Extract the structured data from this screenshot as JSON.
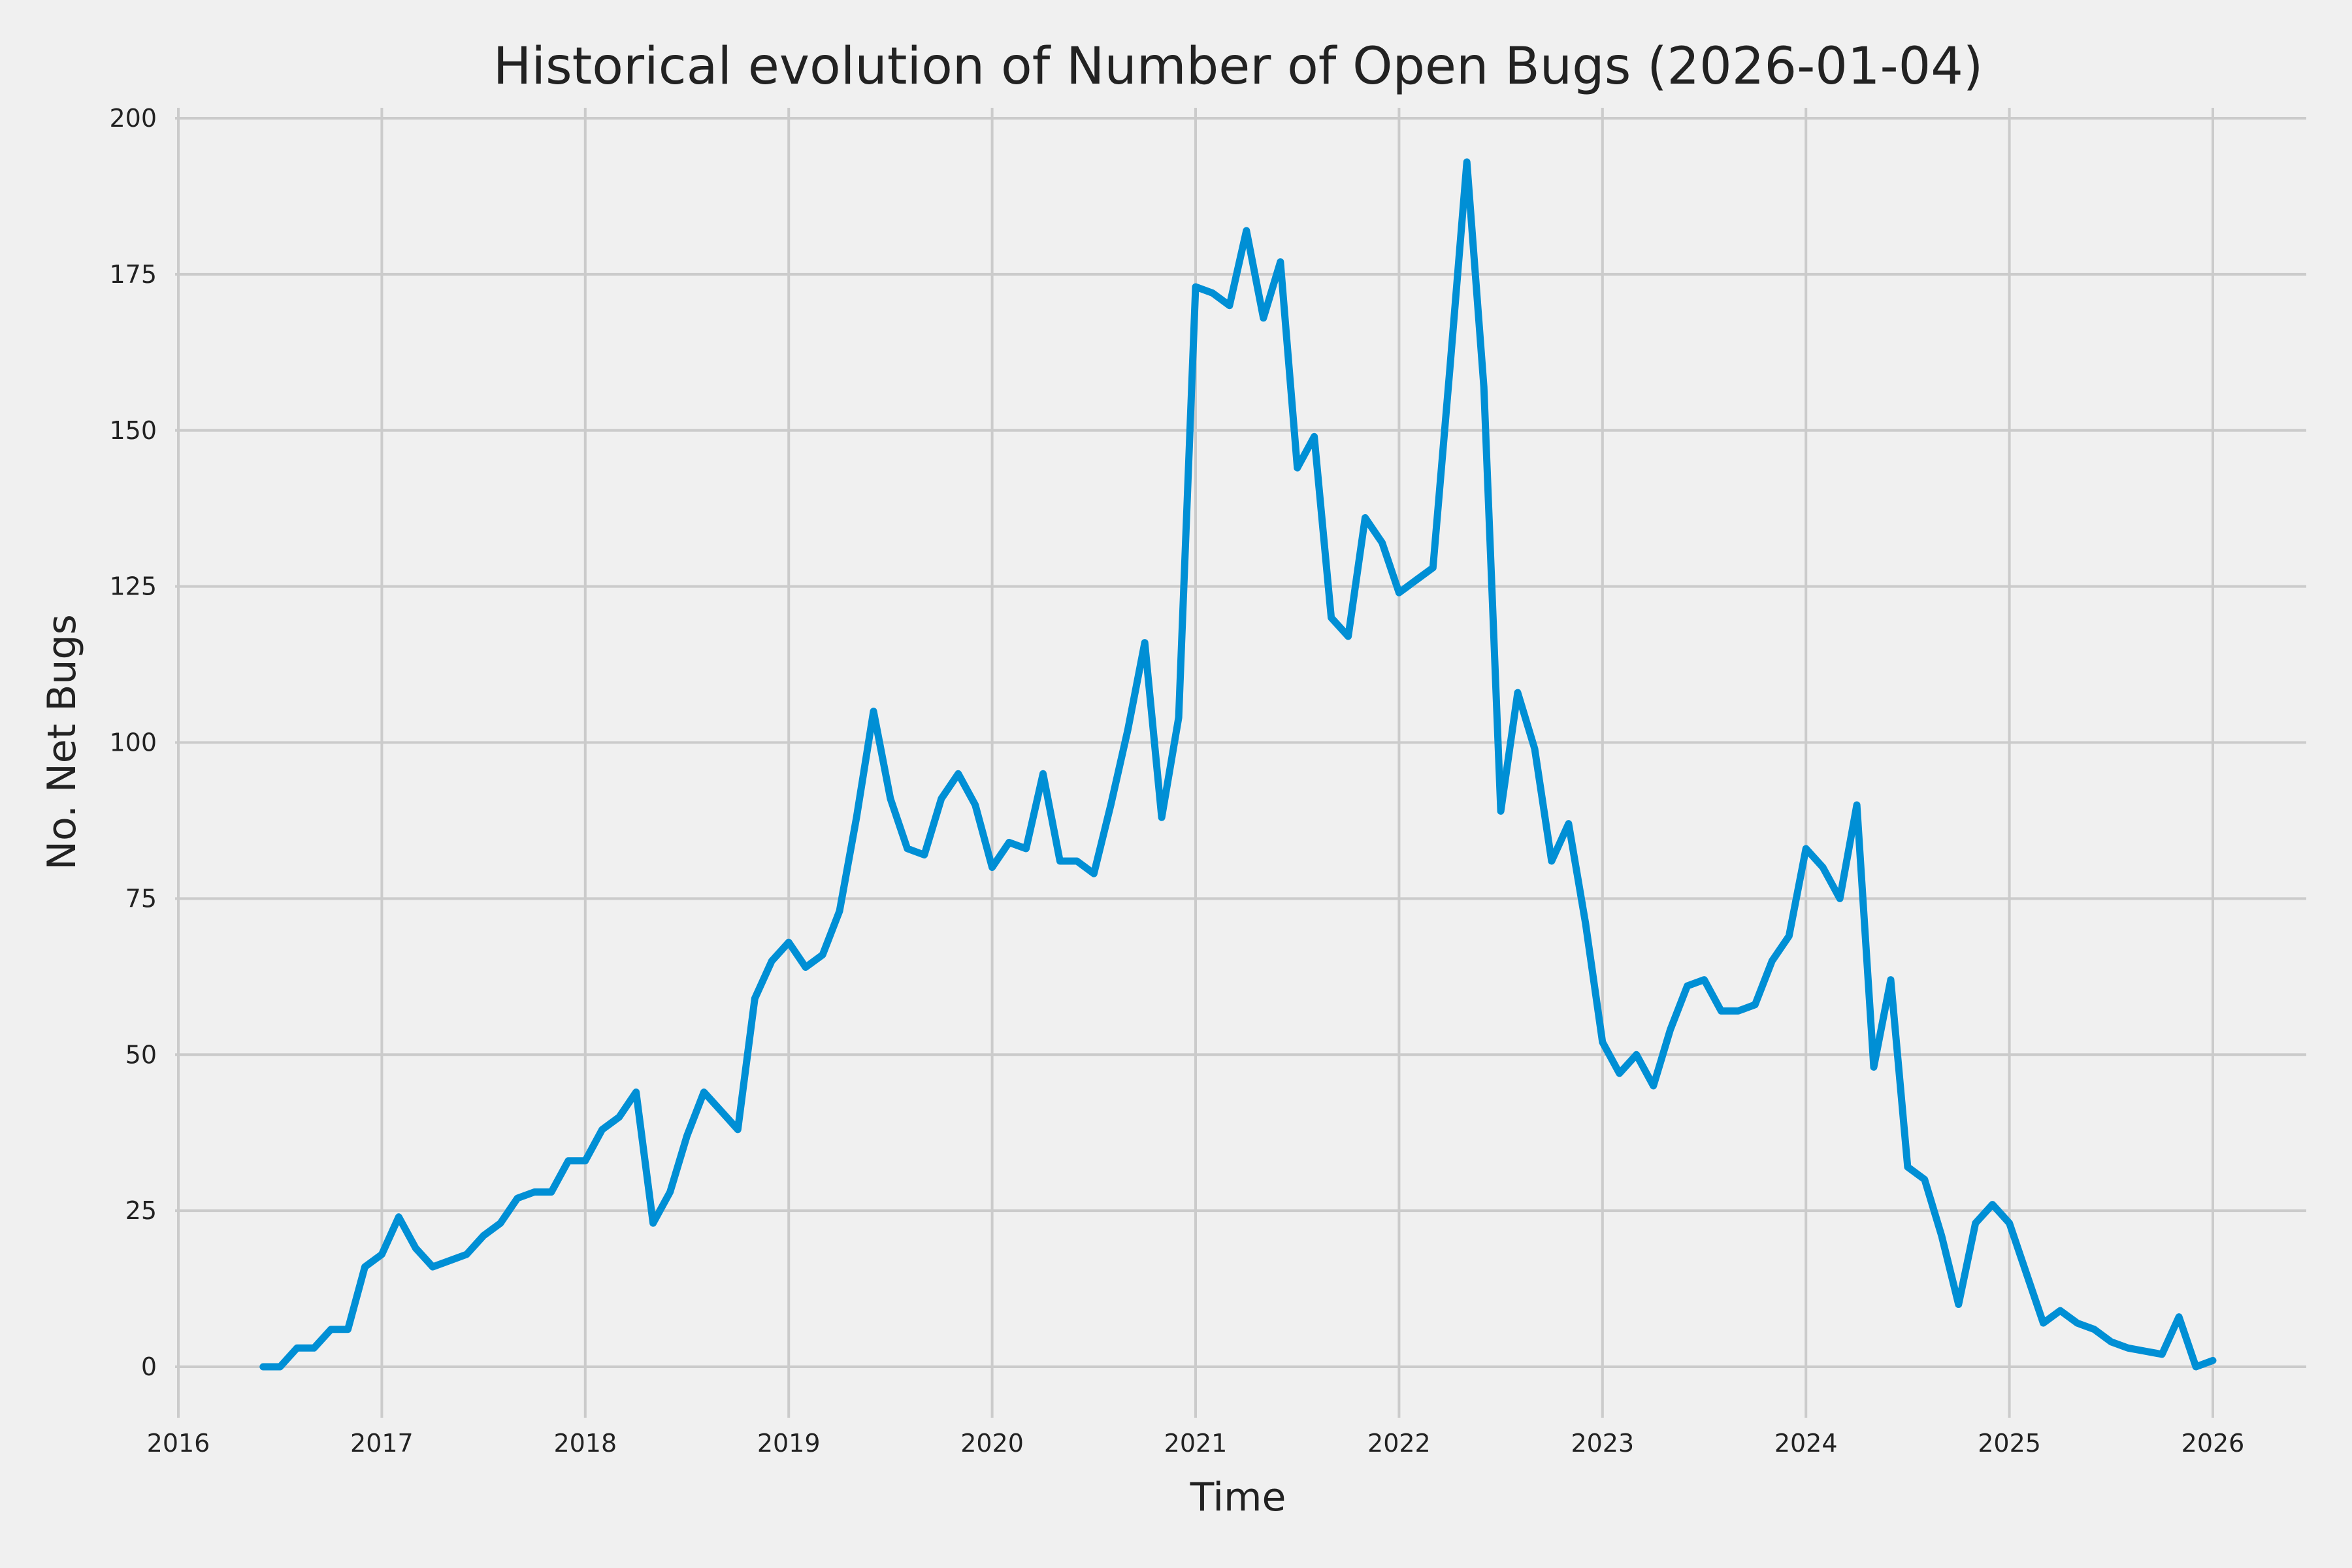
{
  "chart_data": {
    "type": "line",
    "title": "Historical evolution of Number of Open Bugs (2026-01-04)",
    "xlabel": "Time",
    "ylabel": "No. Net Bugs",
    "xlim": [
      "2016-01",
      "2026-07"
    ],
    "ylim": [
      -8,
      202
    ],
    "grid": true,
    "line_color": "#008fd5",
    "background": "#f0f0f0",
    "grid_color": "#cbcbcb",
    "x_ticks": [
      "2016",
      "2017",
      "2018",
      "2019",
      "2020",
      "2021",
      "2022",
      "2023",
      "2024",
      "2025",
      "2026"
    ],
    "y_ticks": [
      "0",
      "25",
      "50",
      "75",
      "100",
      "125",
      "150",
      "175",
      "200"
    ],
    "start_month": "2016-06",
    "values": [
      0,
      0,
      3,
      3,
      6,
      6,
      16,
      18,
      24,
      19,
      16,
      17,
      18,
      21,
      23,
      27,
      28,
      28,
      33,
      33,
      38,
      40,
      44,
      23,
      28,
      37,
      44,
      41,
      38,
      59,
      65,
      68,
      64,
      66,
      73,
      88,
      105,
      91,
      83,
      82,
      91,
      95,
      90,
      80,
      84,
      83,
      95,
      81,
      81,
      79,
      90,
      102,
      116,
      88,
      104,
      173,
      172,
      170,
      182,
      168,
      177,
      144,
      149,
      120,
      117,
      136,
      132,
      124,
      126,
      128,
      160,
      193,
      157,
      89,
      108,
      99,
      81,
      87,
      71,
      52,
      47,
      50,
      45,
      54,
      61,
      62,
      57,
      57,
      58,
      65,
      69,
      83,
      80,
      75,
      90,
      48,
      62,
      32,
      30,
      21,
      10,
      23,
      26,
      23,
      15,
      7,
      9,
      7,
      6,
      4,
      3,
      2.5,
      2,
      8,
      0,
      1
    ]
  }
}
